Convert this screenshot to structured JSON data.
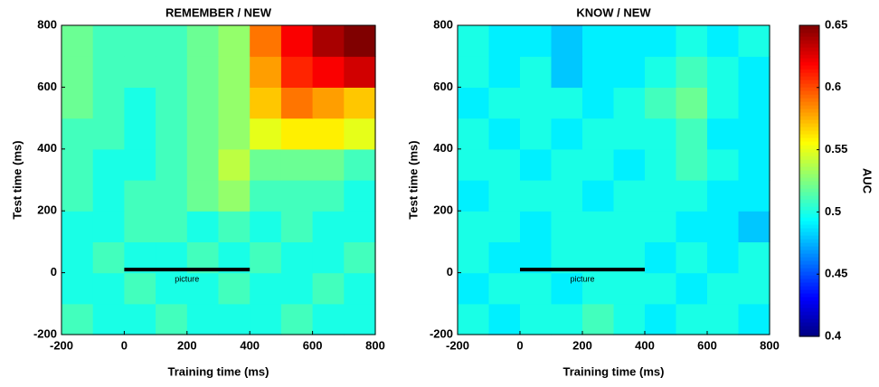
{
  "chart_data": [
    {
      "type": "heatmap",
      "title": "REMEMBER / NEW",
      "xlabel": "Training time (ms)",
      "ylabel": "Test time (ms)",
      "xlim": [
        -200,
        800
      ],
      "ylim": [
        -200,
        800
      ],
      "xticks": [
        -200,
        0,
        200,
        400,
        600,
        800
      ],
      "yticks": [
        -200,
        0,
        200,
        400,
        600,
        800
      ],
      "x": [
        -150,
        -50,
        50,
        150,
        250,
        350,
        450,
        550,
        650,
        750
      ],
      "y": [
        -150,
        -50,
        50,
        150,
        250,
        350,
        450,
        550,
        650,
        750
      ],
      "values": [
        [
          0.51,
          0.5,
          0.5,
          0.51,
          0.5,
          0.5,
          0.5,
          0.51,
          0.5,
          0.5
        ],
        [
          0.5,
          0.5,
          0.51,
          0.5,
          0.5,
          0.51,
          0.5,
          0.5,
          0.51,
          0.5
        ],
        [
          0.5,
          0.51,
          0.5,
          0.5,
          0.51,
          0.5,
          0.51,
          0.5,
          0.5,
          0.51
        ],
        [
          0.5,
          0.5,
          0.51,
          0.51,
          0.5,
          0.51,
          0.5,
          0.51,
          0.5,
          0.5
        ],
        [
          0.51,
          0.5,
          0.51,
          0.51,
          0.52,
          0.53,
          0.51,
          0.51,
          0.51,
          0.5
        ],
        [
          0.51,
          0.5,
          0.5,
          0.51,
          0.52,
          0.54,
          0.52,
          0.52,
          0.52,
          0.51
        ],
        [
          0.51,
          0.51,
          0.5,
          0.51,
          0.52,
          0.53,
          0.55,
          0.56,
          0.56,
          0.55
        ],
        [
          0.52,
          0.51,
          0.5,
          0.51,
          0.52,
          0.53,
          0.57,
          0.59,
          0.58,
          0.57
        ],
        [
          0.52,
          0.51,
          0.51,
          0.51,
          0.52,
          0.53,
          0.58,
          0.61,
          0.62,
          0.63
        ],
        [
          0.52,
          0.51,
          0.51,
          0.51,
          0.52,
          0.53,
          0.59,
          0.62,
          0.64,
          0.65
        ]
      ],
      "annotation": {
        "text": "picture",
        "x": [
          0,
          400
        ],
        "y": 10
      }
    },
    {
      "type": "heatmap",
      "title": "KNOW / NEW",
      "xlabel": "Training time (ms)",
      "ylabel": "Test time (ms)",
      "xlim": [
        -200,
        800
      ],
      "ylim": [
        -200,
        800
      ],
      "xticks": [
        -200,
        0,
        200,
        400,
        600,
        800
      ],
      "yticks": [
        -200,
        0,
        200,
        400,
        600,
        800
      ],
      "x": [
        -150,
        -50,
        50,
        150,
        250,
        350,
        450,
        550,
        650,
        750
      ],
      "y": [
        -150,
        -50,
        50,
        150,
        250,
        350,
        450,
        550,
        650,
        750
      ],
      "values": [
        [
          0.5,
          0.49,
          0.5,
          0.5,
          0.51,
          0.5,
          0.49,
          0.5,
          0.5,
          0.49
        ],
        [
          0.49,
          0.5,
          0.5,
          0.49,
          0.5,
          0.5,
          0.5,
          0.49,
          0.5,
          0.5
        ],
        [
          0.5,
          0.49,
          0.49,
          0.5,
          0.5,
          0.5,
          0.49,
          0.5,
          0.49,
          0.5
        ],
        [
          0.5,
          0.5,
          0.49,
          0.5,
          0.5,
          0.5,
          0.5,
          0.49,
          0.49,
          0.48
        ],
        [
          0.49,
          0.5,
          0.5,
          0.5,
          0.49,
          0.5,
          0.5,
          0.5,
          0.49,
          0.49
        ],
        [
          0.5,
          0.5,
          0.49,
          0.5,
          0.5,
          0.49,
          0.5,
          0.51,
          0.5,
          0.49
        ],
        [
          0.5,
          0.49,
          0.5,
          0.49,
          0.5,
          0.5,
          0.5,
          0.51,
          0.49,
          0.49
        ],
        [
          0.49,
          0.5,
          0.5,
          0.5,
          0.49,
          0.5,
          0.51,
          0.52,
          0.5,
          0.49
        ],
        [
          0.5,
          0.49,
          0.5,
          0.48,
          0.49,
          0.49,
          0.5,
          0.51,
          0.5,
          0.49
        ],
        [
          0.5,
          0.49,
          0.49,
          0.48,
          0.49,
          0.49,
          0.49,
          0.5,
          0.49,
          0.5
        ]
      ],
      "annotation": {
        "text": "picture",
        "x": [
          0,
          400
        ],
        "y": 10
      }
    }
  ],
  "colorbar": {
    "label": "AUC",
    "lim": [
      0.4,
      0.65
    ],
    "ticks": [
      0.4,
      0.45,
      0.5,
      0.55,
      0.6,
      0.65
    ],
    "colormap": "jet"
  }
}
